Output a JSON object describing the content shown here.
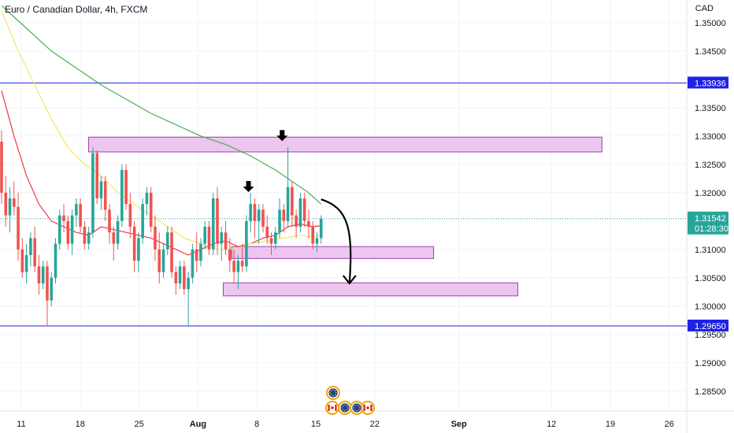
{
  "header": {
    "title": "Euro / Canadian Dollar, 4h, FXCM",
    "currency": "CAD"
  },
  "colors": {
    "up": "#26a69a",
    "down": "#ef5350",
    "ma_fast": "#f23645",
    "ma_mid": "#f5e663",
    "ma_slow": "#4caf50",
    "level": "#1e22e6",
    "zone_fill": "#ecc6ee",
    "zone_border": "#a23cb5",
    "price_badge": "#26a69a"
  },
  "chart_data": {
    "type": "candlestick",
    "symbol": "EURCAD",
    "timeframe": "4h",
    "broker": "FXCM",
    "y_axis": {
      "ticks": [
        "1.35000",
        "1.34500",
        "1.33500",
        "1.33000",
        "1.32500",
        "1.32000",
        "1.31000",
        "1.30500",
        "1.30000",
        "1.29500",
        "1.29000",
        "1.28500"
      ],
      "ylim": [
        1.2815,
        1.354
      ]
    },
    "x_axis": {
      "ticks": [
        {
          "label": "11",
          "bold": false,
          "date": "2022-07-11"
        },
        {
          "label": "18",
          "bold": false,
          "date": "2022-07-18"
        },
        {
          "label": "25",
          "bold": false,
          "date": "2022-07-25"
        },
        {
          "label": "Aug",
          "bold": true,
          "date": "2022-08-01"
        },
        {
          "label": "8",
          "bold": false,
          "date": "2022-08-08"
        },
        {
          "label": "15",
          "bold": false,
          "date": "2022-08-15"
        },
        {
          "label": "22",
          "bold": false,
          "date": "2022-08-22"
        },
        {
          "label": "Sep",
          "bold": true,
          "date": "2022-09-01"
        },
        {
          "label": "12",
          "bold": false,
          "date": "2022-09-12"
        },
        {
          "label": "19",
          "bold": false,
          "date": "2022-09-19"
        },
        {
          "label": "26",
          "bold": false,
          "date": "2022-09-26"
        }
      ]
    },
    "price_levels": [
      {
        "value": 1.33936,
        "label": "1.33936"
      },
      {
        "value": 1.2965,
        "label": "1.29650"
      }
    ],
    "last_price": {
      "value": 1.31542,
      "label": "1.31542",
      "countdown": "01:28:30"
    },
    "zones": [
      {
        "low": 1.328,
        "high": 1.329,
        "from": "2022-07-19",
        "to": "2022-09-18"
      },
      {
        "low": 1.3092,
        "high": 1.3097,
        "from": "2022-08-05",
        "to": "2022-08-29"
      },
      {
        "low": 1.3026,
        "high": 1.3033,
        "from": "2022-08-04",
        "to": "2022-09-08"
      }
    ],
    "down_markers": [
      {
        "date": "2022-08-07",
        "price": 1.319
      },
      {
        "date": "2022-08-11",
        "price": 1.328
      }
    ],
    "projection_arrow": {
      "from_date": "2022-08-16",
      "from_price": 1.318,
      "to_date": "2022-08-19",
      "to_price": 1.304
    },
    "ohlc": [
      [
        1.329,
        1.331,
        1.318,
        1.32
      ],
      [
        1.32,
        1.323,
        1.314,
        1.316
      ],
      [
        1.316,
        1.321,
        1.313,
        1.319
      ],
      [
        1.319,
        1.322,
        1.316,
        1.3175
      ],
      [
        1.3175,
        1.32,
        1.308,
        1.31
      ],
      [
        1.31,
        1.312,
        1.305,
        1.306
      ],
      [
        1.306,
        1.311,
        1.304,
        1.309
      ],
      [
        1.309,
        1.313,
        1.307,
        1.312
      ],
      [
        1.312,
        1.314,
        1.306,
        1.307
      ],
      [
        1.307,
        1.309,
        1.302,
        1.304
      ],
      [
        1.304,
        1.308,
        1.303,
        1.307
      ],
      [
        1.307,
        1.308,
        1.2965,
        1.301
      ],
      [
        1.301,
        1.306,
        1.3,
        1.305
      ],
      [
        1.305,
        1.312,
        1.304,
        1.311
      ],
      [
        1.311,
        1.317,
        1.31,
        1.316
      ],
      [
        1.316,
        1.318,
        1.313,
        1.315
      ],
      [
        1.315,
        1.316,
        1.31,
        1.311
      ],
      [
        1.311,
        1.317,
        1.309,
        1.316
      ],
      [
        1.316,
        1.319,
        1.314,
        1.318
      ],
      [
        1.318,
        1.319,
        1.313,
        1.314
      ],
      [
        1.314,
        1.315,
        1.31,
        1.311
      ],
      [
        1.311,
        1.314,
        1.31,
        1.313
      ],
      [
        1.313,
        1.328,
        1.312,
        1.327
      ],
      [
        1.327,
        1.3275,
        1.318,
        1.319
      ],
      [
        1.319,
        1.323,
        1.317,
        1.322
      ],
      [
        1.322,
        1.323,
        1.315,
        1.317
      ],
      [
        1.317,
        1.318,
        1.311,
        1.313
      ],
      [
        1.313,
        1.314,
        1.308,
        1.311
      ],
      [
        1.311,
        1.316,
        1.31,
        1.315
      ],
      [
        1.315,
        1.325,
        1.314,
        1.324
      ],
      [
        1.324,
        1.325,
        1.317,
        1.318
      ],
      [
        1.318,
        1.32,
        1.312,
        1.314
      ],
      [
        1.314,
        1.315,
        1.306,
        1.308
      ],
      [
        1.308,
        1.313,
        1.306,
        1.312
      ],
      [
        1.312,
        1.319,
        1.311,
        1.318
      ],
      [
        1.318,
        1.321,
        1.316,
        1.32
      ],
      [
        1.32,
        1.321,
        1.313,
        1.314
      ],
      [
        1.314,
        1.316,
        1.308,
        1.31
      ],
      [
        1.31,
        1.313,
        1.304,
        1.306
      ],
      [
        1.306,
        1.311,
        1.305,
        1.31
      ],
      [
        1.31,
        1.314,
        1.309,
        1.313
      ],
      [
        1.313,
        1.314,
        1.305,
        1.306
      ],
      [
        1.306,
        1.307,
        1.302,
        1.304
      ],
      [
        1.304,
        1.308,
        1.303,
        1.307
      ],
      [
        1.307,
        1.308,
        1.302,
        1.303
      ],
      [
        1.303,
        1.306,
        1.2965,
        1.305
      ],
      [
        1.305,
        1.311,
        1.304,
        1.31
      ],
      [
        1.31,
        1.313,
        1.306,
        1.308
      ],
      [
        1.308,
        1.312,
        1.307,
        1.311
      ],
      [
        1.311,
        1.315,
        1.31,
        1.314
      ],
      [
        1.314,
        1.315,
        1.309,
        1.31
      ],
      [
        1.31,
        1.32,
        1.309,
        1.319
      ],
      [
        1.319,
        1.321,
        1.309,
        1.311
      ],
      [
        1.311,
        1.314,
        1.308,
        1.313
      ],
      [
        1.313,
        1.315,
        1.309,
        1.31
      ],
      [
        1.31,
        1.312,
        1.306,
        1.308
      ],
      [
        1.308,
        1.31,
        1.304,
        1.306
      ],
      [
        1.306,
        1.309,
        1.303,
        1.308
      ],
      [
        1.308,
        1.311,
        1.306,
        1.307
      ],
      [
        1.307,
        1.316,
        1.306,
        1.315
      ],
      [
        1.315,
        1.32,
        1.313,
        1.318
      ],
      [
        1.318,
        1.319,
        1.312,
        1.315
      ],
      [
        1.315,
        1.318,
        1.311,
        1.317
      ],
      [
        1.317,
        1.318,
        1.313,
        1.314
      ],
      [
        1.314,
        1.316,
        1.311,
        1.312
      ],
      [
        1.312,
        1.313,
        1.309,
        1.311
      ],
      [
        1.311,
        1.314,
        1.31,
        1.313
      ],
      [
        1.313,
        1.319,
        1.312,
        1.317
      ],
      [
        1.317,
        1.318,
        1.313,
        1.315
      ],
      [
        1.315,
        1.328,
        1.314,
        1.321
      ],
      [
        1.321,
        1.322,
        1.314,
        1.316
      ],
      [
        1.316,
        1.317,
        1.312,
        1.314
      ],
      [
        1.314,
        1.32,
        1.313,
        1.319
      ],
      [
        1.319,
        1.32,
        1.314,
        1.315
      ],
      [
        1.315,
        1.317,
        1.312,
        1.314
      ],
      [
        1.314,
        1.315,
        1.31,
        1.311
      ],
      [
        1.311,
        1.313,
        1.3095,
        1.312
      ],
      [
        1.312,
        1.316,
        1.311,
        1.3154
      ]
    ],
    "moving_averages": [
      {
        "color": "#f23645",
        "values": [
          [
            0,
            1.338
          ],
          [
            3,
            1.33
          ],
          [
            6,
            1.323
          ],
          [
            9,
            1.318
          ],
          [
            12,
            1.315
          ],
          [
            15,
            1.314
          ],
          [
            18,
            1.313
          ],
          [
            21,
            1.3125
          ],
          [
            24,
            1.314
          ],
          [
            27,
            1.3135
          ],
          [
            30,
            1.313
          ],
          [
            33,
            1.3125
          ],
          [
            36,
            1.312
          ],
          [
            39,
            1.311
          ],
          [
            42,
            1.31
          ],
          [
            45,
            1.309
          ],
          [
            48,
            1.31
          ],
          [
            51,
            1.311
          ],
          [
            54,
            1.3115
          ],
          [
            57,
            1.3105
          ],
          [
            60,
            1.311
          ],
          [
            63,
            1.312
          ],
          [
            66,
            1.3125
          ],
          [
            69,
            1.314
          ],
          [
            72,
            1.3145
          ],
          [
            75,
            1.314
          ],
          [
            77,
            1.3142
          ]
        ]
      },
      {
        "color": "#f5e663",
        "values": [
          [
            0,
            1.352
          ],
          [
            4,
            1.345
          ],
          [
            8,
            1.339
          ],
          [
            12,
            1.333
          ],
          [
            16,
            1.328
          ],
          [
            20,
            1.325
          ],
          [
            24,
            1.323
          ],
          [
            28,
            1.32
          ],
          [
            32,
            1.318
          ],
          [
            36,
            1.316
          ],
          [
            40,
            1.314
          ],
          [
            44,
            1.312
          ],
          [
            48,
            1.311
          ],
          [
            52,
            1.31
          ],
          [
            56,
            1.31
          ],
          [
            60,
            1.311
          ],
          [
            64,
            1.3115
          ],
          [
            68,
            1.312
          ],
          [
            72,
            1.3125
          ],
          [
            75,
            1.3122
          ],
          [
            77,
            1.3125
          ]
        ]
      },
      {
        "color": "#4caf50",
        "values": [
          [
            0,
            1.353
          ],
          [
            6,
            1.349
          ],
          [
            12,
            1.345
          ],
          [
            18,
            1.342
          ],
          [
            24,
            1.339
          ],
          [
            30,
            1.3365
          ],
          [
            36,
            1.334
          ],
          [
            42,
            1.332
          ],
          [
            48,
            1.33
          ],
          [
            54,
            1.3285
          ],
          [
            60,
            1.3265
          ],
          [
            66,
            1.324
          ],
          [
            70,
            1.322
          ],
          [
            74,
            1.32
          ],
          [
            77,
            1.318
          ]
        ]
      }
    ]
  },
  "legend_icons": [
    "eu-flag-icon",
    "canada-flag-icon",
    "eu-flag-icon",
    "eu-flag-icon",
    "canada-flag-icon"
  ]
}
